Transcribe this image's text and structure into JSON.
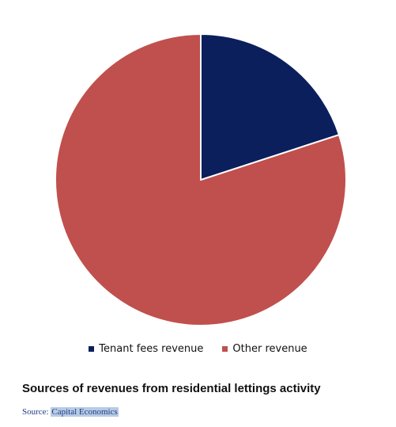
{
  "chart_data": {
    "type": "pie",
    "categories": [
      "Tenant fees revenue",
      "Other revenue"
    ],
    "values": [
      20,
      80
    ],
    "colors": [
      "#0b1f5c",
      "#c0504d"
    ],
    "start_angle_deg": 0,
    "direction": "clockwise",
    "title": "Sources of revenues from residential lettings activity",
    "legend_position": "bottom",
    "legend": [
      {
        "label": "Tenant fees revenue",
        "color": "#0b1f5c"
      },
      {
        "label": "Other revenue",
        "color": "#c0504d"
      }
    ]
  },
  "source": {
    "prefix": "Source: ",
    "name": "Capital Economics"
  }
}
